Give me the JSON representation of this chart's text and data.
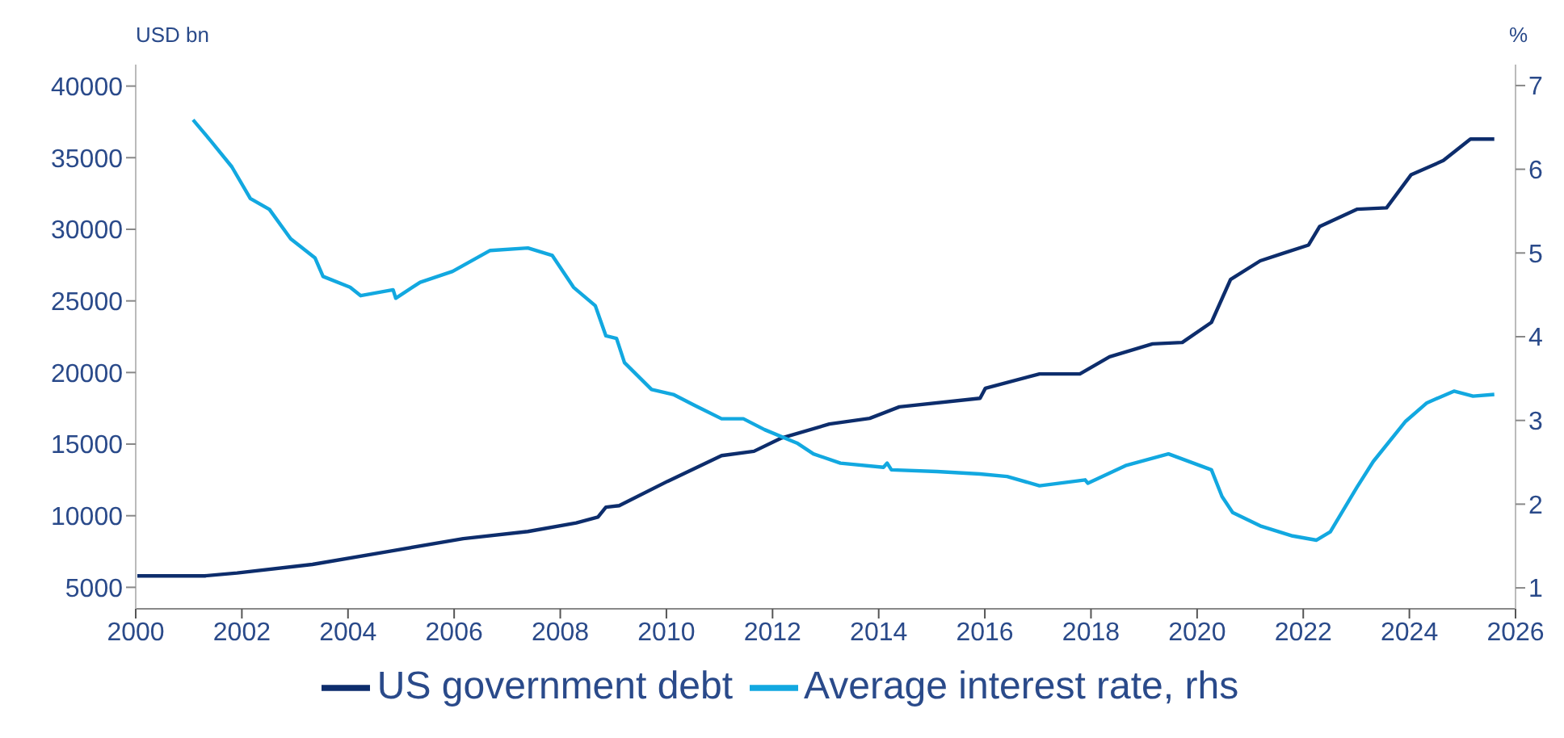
{
  "chart_data": {
    "type": "line",
    "ylabel": "USD bn",
    "y2label": "%",
    "xlim": [
      2000,
      2026
    ],
    "xticks": [
      2000,
      2002,
      2004,
      2006,
      2008,
      2010,
      2012,
      2014,
      2016,
      2018,
      2020,
      2022,
      2024,
      2026
    ],
    "ylim": [
      3500,
      41500
    ],
    "yticks": [
      5000,
      10000,
      15000,
      20000,
      25000,
      30000,
      35000,
      40000
    ],
    "y2lim": [
      0.75,
      7.25
    ],
    "y2ticks": [
      1,
      2,
      3,
      4,
      5,
      6,
      7
    ],
    "grid": false,
    "legend": "bottom",
    "marker": "none",
    "line_style": "solid",
    "series": [
      {
        "name": "US government debt",
        "color": "#0d2d6c",
        "x": [
          2000.03,
          2001.3,
          2001.91,
          2003.33,
          2004.75,
          2006.17,
          2007.39,
          2008.3,
          2008.71,
          2008.86,
          2009.11,
          2010.02,
          2011.04,
          2011.65,
          2012.15,
          2013.07,
          2013.83,
          2014.39,
          2015.91,
          2016.01,
          2017.03,
          2017.79,
          2018.35,
          2019.16,
          2019.72,
          2020.27,
          2020.63,
          2021.19,
          2021.6,
          2022.1,
          2022.31,
          2023.01,
          2023.57,
          2024.03,
          2024.64,
          2025.15,
          2025.6
        ],
        "values": [
          5800,
          5800,
          6000,
          6600,
          7500,
          8400,
          8900,
          9500,
          9900,
          10600,
          10700,
          12400,
          14200,
          14500,
          15400,
          16400,
          16800,
          17600,
          18200,
          18900,
          19900,
          19900,
          21100,
          22000,
          22100,
          23500,
          26500,
          27800,
          28300,
          28900,
          30200,
          31400,
          31500,
          33800,
          34800,
          36300,
          36300
        ]
      },
      {
        "name": "Average interest rate, rhs",
        "color": "#12a8e0",
        "axis": "y2",
        "x": [
          2001.08,
          2001.4,
          2001.81,
          2002.16,
          2002.52,
          2002.92,
          2003.38,
          2003.53,
          2004.04,
          2004.24,
          2004.85,
          2004.9,
          2005.36,
          2005.97,
          2006.68,
          2007.39,
          2007.85,
          2008.25,
          2008.66,
          2008.86,
          2009.06,
          2009.21,
          2009.72,
          2010.13,
          2010.53,
          2011.04,
          2011.45,
          2011.85,
          2012.46,
          2012.77,
          2013.28,
          2014.09,
          2014.16,
          2014.24,
          2015.1,
          2015.91,
          2016.42,
          2017.03,
          2017.89,
          2017.94,
          2018.65,
          2019.46,
          2020.27,
          2020.47,
          2020.67,
          2021.19,
          2021.8,
          2022.25,
          2022.51,
          2023.01,
          2023.32,
          2023.93,
          2024.33,
          2024.84,
          2025.2,
          2025.6
        ],
        "values": [
          6.59,
          6.35,
          6.03,
          5.65,
          5.52,
          5.17,
          4.94,
          4.72,
          4.59,
          4.49,
          4.56,
          4.46,
          4.65,
          4.78,
          5.03,
          5.06,
          4.97,
          4.59,
          4.37,
          4.01,
          3.98,
          3.69,
          3.37,
          3.31,
          3.18,
          3.02,
          3.02,
          2.89,
          2.73,
          2.6,
          2.49,
          2.44,
          2.49,
          2.41,
          2.39,
          2.36,
          2.33,
          2.22,
          2.29,
          2.25,
          2.46,
          2.6,
          2.41,
          2.09,
          1.9,
          1.74,
          1.62,
          1.57,
          1.67,
          2.2,
          2.51,
          2.99,
          3.21,
          3.35,
          3.29,
          3.31
        ]
      }
    ]
  }
}
